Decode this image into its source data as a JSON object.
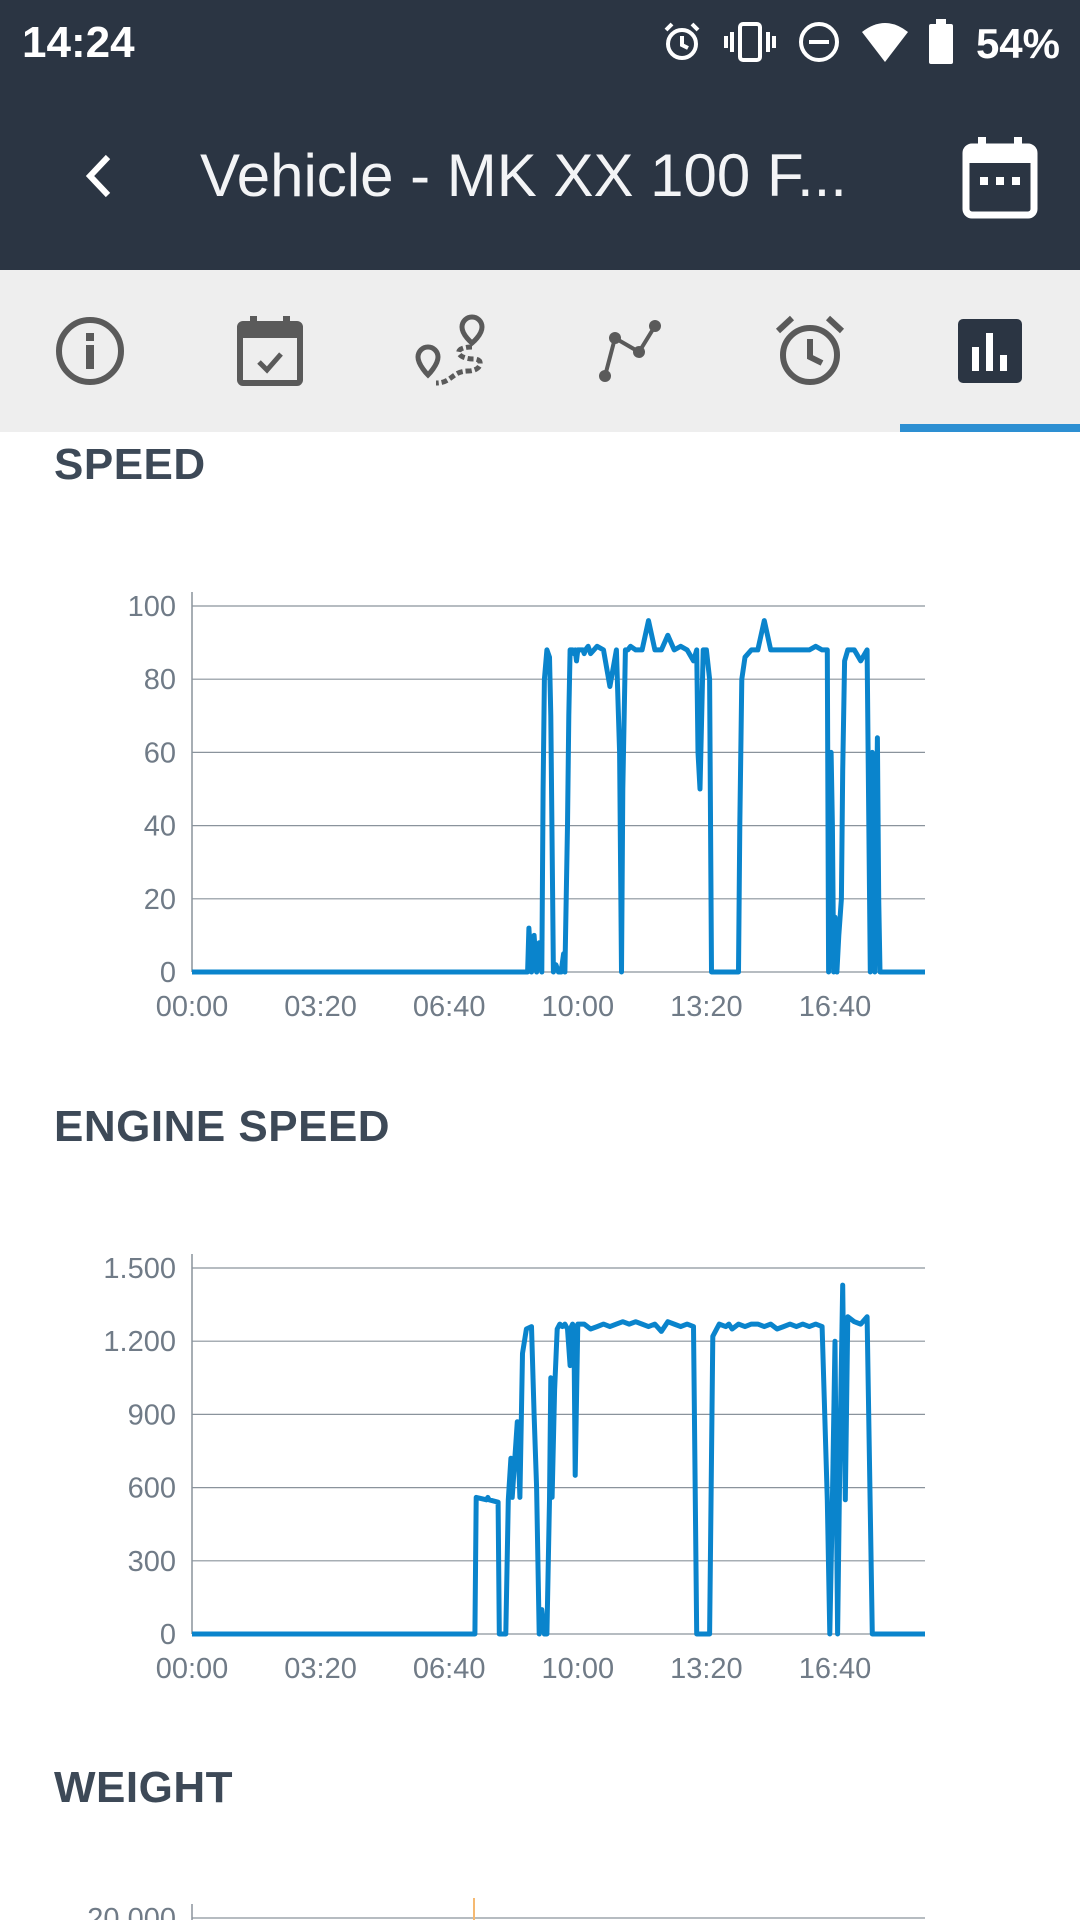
{
  "status_bar": {
    "time": "14:24",
    "battery": "54%",
    "icons": [
      "alarm-icon",
      "vibrate-icon",
      "do-not-disturb-icon",
      "wifi-icon",
      "battery-icon"
    ]
  },
  "app_bar": {
    "title": "Vehicle - MK XX 100 F...",
    "back_icon": "chevron-left-icon",
    "action_icon": "calendar-icon"
  },
  "tabs": [
    {
      "id": "info",
      "icon": "info-icon",
      "selected": false
    },
    {
      "id": "calendar",
      "icon": "calendar-check-icon",
      "selected": false
    },
    {
      "id": "route",
      "icon": "route-icon",
      "selected": false
    },
    {
      "id": "track",
      "icon": "polyline-icon",
      "selected": false
    },
    {
      "id": "timer",
      "icon": "alarm-clock-icon",
      "selected": false
    },
    {
      "id": "charts",
      "icon": "bar-chart-icon",
      "selected": true
    }
  ],
  "colors": {
    "header": "#2b3543",
    "tab_bar": "#eeeeee",
    "accent": "#2d8fd2",
    "series": "#0a84cc",
    "secondary_series": "#e8e8e8",
    "weight_marker": "#f5b971"
  },
  "sections": {
    "speed": {
      "title": "SPEED"
    },
    "engine_speed": {
      "title": "ENGINE SPEED"
    },
    "weight": {
      "title": "WEIGHT"
    }
  },
  "chart_data": [
    {
      "type": "line",
      "xlim": [
        0,
        1140
      ],
      "ylim": [
        0,
        100
      ],
      "yticks": [
        {
          "value": 0,
          "label": "0"
        },
        {
          "value": 20,
          "label": "20"
        },
        {
          "value": 40,
          "label": "40"
        },
        {
          "value": 60,
          "label": "60"
        },
        {
          "value": 80,
          "label": "80"
        },
        {
          "value": 100,
          "label": "100"
        }
      ],
      "xticks": [
        {
          "value": 0,
          "label": "00:00"
        },
        {
          "value": 200,
          "label": "03:20"
        },
        {
          "value": 400,
          "label": "06:40"
        },
        {
          "value": 600,
          "label": "10:00"
        },
        {
          "value": 800,
          "label": "13:20"
        },
        {
          "value": 1000,
          "label": "16:40"
        }
      ],
      "grid": true,
      "series": [
        {
          "x": [
            0,
            440,
            500,
            522,
            524,
            528,
            532,
            536,
            540,
            544,
            546,
            548,
            552,
            556,
            558,
            562,
            566,
            570,
            574,
            578,
            580,
            582,
            584,
            586,
            588,
            592,
            594,
            596,
            598,
            600,
            604,
            608,
            610,
            612,
            616,
            620,
            630,
            640,
            650,
            660,
            665,
            668,
            670,
            674,
            678,
            682,
            690,
            700,
            710,
            720,
            730,
            740,
            750,
            760,
            770,
            780,
            785,
            787,
            790,
            795,
            800,
            805,
            808,
            810,
            820,
            830,
            840,
            850,
            852,
            855,
            860,
            870,
            880,
            890,
            900,
            910,
            920,
            930,
            940,
            950,
            960,
            970,
            980,
            988,
            990,
            992,
            994,
            996,
            998,
            1000,
            1003,
            1006,
            1010,
            1012,
            1015,
            1020,
            1030,
            1040,
            1050,
            1055,
            1058,
            1060,
            1062,
            1066,
            1068,
            1070,
            1075,
            1080,
            1095,
            1110,
            1140
          ],
          "y": [
            0,
            0,
            0,
            0,
            12,
            0,
            10,
            0,
            8,
            0,
            50,
            80,
            88,
            86,
            70,
            0,
            2,
            0,
            0,
            5,
            0,
            20,
            40,
            70,
            88,
            88,
            87,
            88,
            85,
            88,
            88,
            88,
            87,
            88,
            89,
            87,
            89,
            88,
            78,
            88,
            60,
            0,
            50,
            88,
            88,
            89,
            88,
            88,
            96,
            88,
            88,
            92,
            88,
            89,
            88,
            85,
            88,
            60,
            50,
            88,
            88,
            80,
            0,
            0,
            0,
            0,
            0,
            0,
            40,
            80,
            86,
            88,
            88,
            96,
            88,
            88,
            88,
            88,
            88,
            88,
            88,
            89,
            88,
            88,
            0,
            20,
            60,
            40,
            0,
            15,
            0,
            10,
            20,
            55,
            85,
            88,
            88,
            85,
            88,
            0,
            60,
            40,
            0,
            64,
            20,
            0,
            0,
            0,
            0,
            0,
            0
          ]
        }
      ]
    },
    {
      "type": "line",
      "xlim": [
        0,
        1140
      ],
      "ylim": [
        0,
        1500
      ],
      "yticks": [
        {
          "value": 0,
          "label": "0"
        },
        {
          "value": 300,
          "label": "300"
        },
        {
          "value": 600,
          "label": "600"
        },
        {
          "value": 900,
          "label": "900"
        },
        {
          "value": 1200,
          "label": "1.200"
        },
        {
          "value": 1500,
          "label": "1.500"
        }
      ],
      "xticks": [
        {
          "value": 0,
          "label": "00:00"
        },
        {
          "value": 200,
          "label": "03:20"
        },
        {
          "value": 400,
          "label": "06:40"
        },
        {
          "value": 600,
          "label": "10:00"
        },
        {
          "value": 800,
          "label": "13:20"
        },
        {
          "value": 1000,
          "label": "16:40"
        }
      ],
      "grid": true,
      "series": [
        {
          "x": [
            0,
            440,
            442,
            458,
            460,
            462,
            476,
            478,
            482,
            486,
            488,
            492,
            496,
            498,
            506,
            510,
            514,
            520,
            528,
            532,
            536,
            538,
            540,
            544,
            548,
            550,
            552,
            556,
            558,
            560,
            564,
            568,
            572,
            576,
            580,
            584,
            588,
            590,
            592,
            594,
            596,
            600,
            610,
            620,
            630,
            640,
            650,
            660,
            670,
            680,
            690,
            700,
            710,
            720,
            730,
            740,
            750,
            760,
            770,
            780,
            785,
            790,
            795,
            800,
            805,
            810,
            820,
            830,
            835,
            840,
            850,
            860,
            870,
            880,
            890,
            900,
            910,
            920,
            930,
            940,
            950,
            960,
            970,
            980,
            988,
            992,
            996,
            1000,
            1004,
            1008,
            1012,
            1016,
            1020,
            1030,
            1040,
            1050,
            1058,
            1062,
            1066,
            1070,
            1080,
            1100,
            1140
          ],
          "y": [
            0,
            0,
            560,
            550,
            560,
            550,
            540,
            0,
            0,
            0,
            0,
            550,
            720,
            560,
            870,
            560,
            1150,
            1250,
            1260,
            900,
            600,
            300,
            0,
            100,
            0,
            0,
            0,
            550,
            1050,
            560,
            1000,
            1250,
            1270,
            1260,
            1270,
            1250,
            1100,
            1260,
            1270,
            1260,
            650,
            1270,
            1270,
            1250,
            1260,
            1270,
            1260,
            1270,
            1280,
            1270,
            1280,
            1270,
            1260,
            1270,
            1240,
            1280,
            1270,
            1260,
            1270,
            1260,
            0,
            0,
            0,
            0,
            0,
            1220,
            1270,
            1260,
            1270,
            1250,
            1270,
            1260,
            1270,
            1270,
            1260,
            1270,
            1250,
            1260,
            1270,
            1260,
            1270,
            1260,
            1270,
            1260,
            550,
            0,
            550,
            1200,
            0,
            800,
            1430,
            550,
            1300,
            1280,
            1270,
            1300,
            0,
            0,
            0,
            0,
            0,
            0,
            0
          ]
        }
      ]
    },
    {
      "type": "line",
      "ylim": [
        0,
        20000
      ],
      "yticks": [
        {
          "value": 20000,
          "label": "20.000"
        }
      ],
      "grid": true,
      "series": []
    }
  ]
}
